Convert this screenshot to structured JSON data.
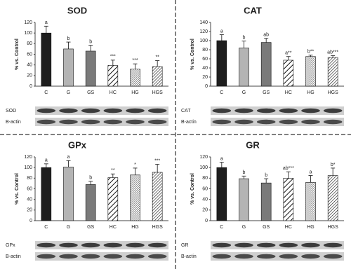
{
  "chart_data": [
    {
      "type": "bar",
      "title": "SOD",
      "y_label": "% vs. Control",
      "categories": [
        "C",
        "G",
        "GS",
        "HC",
        "HG",
        "HGS"
      ],
      "values": [
        100,
        70,
        66,
        39,
        32,
        37
      ],
      "errors": [
        13,
        13,
        11,
        10,
        10,
        11
      ],
      "annotations": [
        "a",
        "b",
        "b",
        "***",
        "***",
        "**"
      ],
      "colors": [
        "#1e1e1e",
        "#b4b4b4",
        "#7a7a7a",
        "#ffffff",
        "#ffffff",
        "#ffffff"
      ],
      "patterns": [
        null,
        null,
        null,
        "diagonal",
        "checker",
        "diagonal-dense"
      ],
      "ylim": [
        0,
        120
      ],
      "yticks": [
        0,
        20,
        40,
        60,
        80,
        100,
        120
      ],
      "blot_labels": [
        "SOD",
        "B-actin"
      ]
    },
    {
      "type": "bar",
      "title": "CAT",
      "y_label": "% vs. Control",
      "categories": [
        "C",
        "G",
        "GS",
        "HC",
        "HG",
        "HGS"
      ],
      "values": [
        100,
        84,
        96,
        57,
        65,
        63
      ],
      "errors": [
        13,
        15,
        9,
        8,
        3,
        4
      ],
      "annotations": [
        "a",
        "b",
        "ab",
        "a**",
        "b**",
        "ab***"
      ],
      "colors": [
        "#1e1e1e",
        "#b4b4b4",
        "#7a7a7a",
        "#ffffff",
        "#ffffff",
        "#ffffff"
      ],
      "patterns": [
        null,
        null,
        null,
        "diagonal",
        "checker",
        "diagonal-dense"
      ],
      "ylim": [
        0,
        140
      ],
      "yticks": [
        0,
        20,
        40,
        60,
        80,
        100,
        120,
        140
      ],
      "blot_labels": [
        "CAT",
        "B-actin"
      ]
    },
    {
      "type": "bar",
      "title": "GPx",
      "y_label": "% vs. Control",
      "categories": [
        "C",
        "G",
        "GS",
        "HC",
        "HG",
        "HGS"
      ],
      "values": [
        100,
        101,
        68,
        81,
        86,
        91
      ],
      "errors": [
        7,
        12,
        6,
        7,
        13,
        15
      ],
      "annotations": [
        "a",
        "a",
        "b",
        "**",
        "*",
        "***"
      ],
      "colors": [
        "#1e1e1e",
        "#b4b4b4",
        "#7a7a7a",
        "#ffffff",
        "#ffffff",
        "#ffffff"
      ],
      "patterns": [
        null,
        null,
        null,
        "diagonal",
        "checker",
        "diagonal-dense"
      ],
      "ylim": [
        0,
        120
      ],
      "yticks": [
        0,
        20,
        40,
        60,
        80,
        100,
        120
      ],
      "blot_labels": [
        "GPx",
        "B-actin"
      ]
    },
    {
      "type": "bar",
      "title": "GR",
      "y_label": "% vs. Control",
      "categories": [
        "C",
        "G",
        "GS",
        "HC",
        "HG",
        "HGS"
      ],
      "values": [
        100,
        79,
        71,
        80,
        72,
        85
      ],
      "errors": [
        10,
        5,
        8,
        12,
        13,
        14
      ],
      "annotations": [
        "a",
        "b",
        "b",
        "ab***",
        "a",
        "b*"
      ],
      "colors": [
        "#1e1e1e",
        "#b4b4b4",
        "#7a7a7a",
        "#ffffff",
        "#ffffff",
        "#ffffff"
      ],
      "patterns": [
        null,
        null,
        null,
        "diagonal",
        "checker",
        "diagonal-dense"
      ],
      "ylim": [
        0,
        120
      ],
      "yticks": [
        0,
        20,
        40,
        60,
        80,
        100,
        120
      ],
      "blot_labels": [
        "GR",
        "B-actin"
      ]
    }
  ]
}
